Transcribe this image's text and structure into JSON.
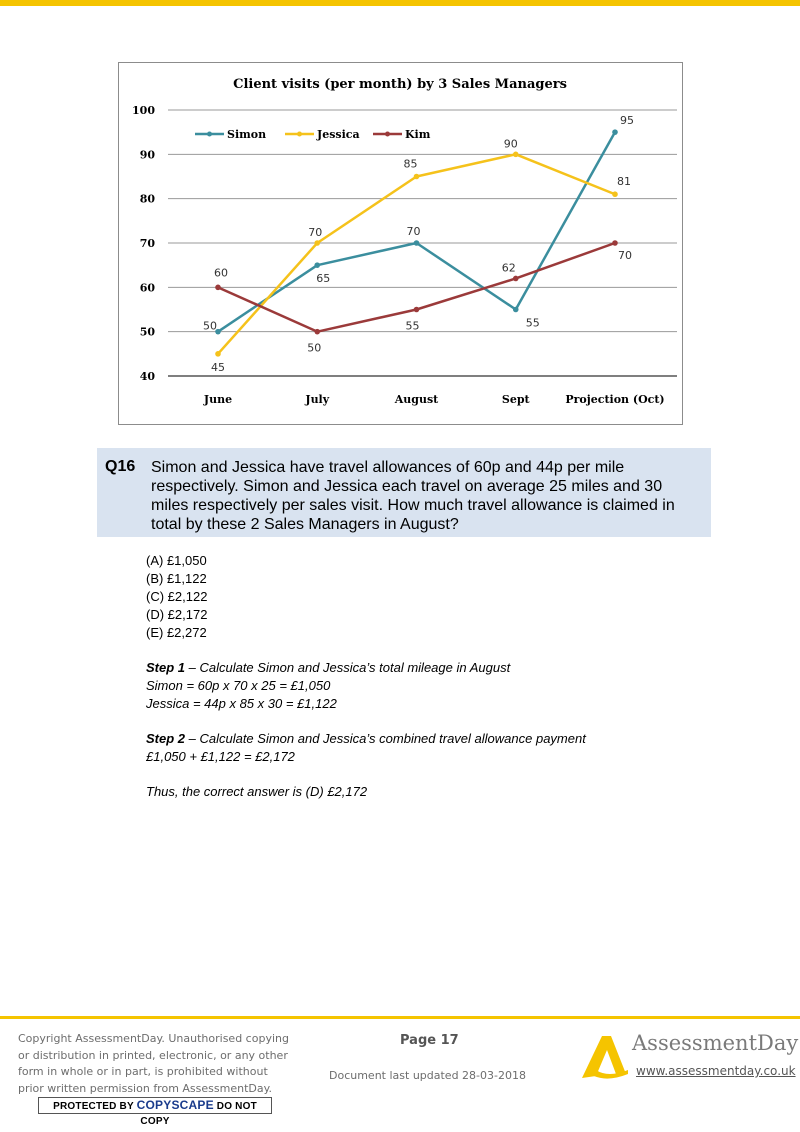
{
  "chart_data": {
    "type": "line",
    "title": "Client visits (per month) by 3 Sales Managers",
    "categories": [
      "June",
      "July",
      "August",
      "Sept",
      "Projection (Oct)"
    ],
    "ylim": [
      40,
      100
    ],
    "yticks": [
      "40",
      "50",
      "60",
      "70",
      "80",
      "90",
      "100"
    ],
    "grid": true,
    "legend_placement": "top-left",
    "series": [
      {
        "name": "Simon",
        "color": "#3b8e9e",
        "values": [
          50,
          65,
          70,
          55,
          95
        ]
      },
      {
        "name": "Jessica",
        "color": "#f5c21b",
        "values": [
          45,
          70,
          85,
          90,
          81
        ]
      },
      {
        "name": "Kim",
        "color": "#9b3a3a",
        "values": [
          60,
          50,
          55,
          62,
          70
        ]
      }
    ]
  },
  "question": {
    "number": "Q16",
    "lines": [
      "Simon and Jessica have travel allowances of 60p and 44p per mile",
      "respectively. Simon and Jessica each travel on average 25 miles and 30",
      "miles respectively per sales visit. How much travel allowance is claimed in",
      "total by these 2 Sales Managers in August?"
    ]
  },
  "options": [
    "(A) £1,050",
    "(B) £1,122",
    "(C) £2,122",
    "(D) £2,172",
    "(E) £2,272"
  ],
  "solution": {
    "step1_label": "Step 1",
    "step1_text": " – Calculate Simon and Jessica’s total mileage in August",
    "step1_line1": "Simon = 60p x 70 x 25 = £1,050",
    "step1_line2": "Jessica = 44p x 85 x 30 = £1,122",
    "step2_label": "Step 2",
    "step2_text": " – Calculate Simon and Jessica’s combined travel allowance payment",
    "step2_line1": "£1,050 + £1,122 = £2,172",
    "conclusion": "Thus, the correct answer is (D) £2,172"
  },
  "footer": {
    "copyright_lines": [
      "Copyright AssessmentDay. Unauthorised copying",
      "or distribution in printed, electronic, or any other",
      "form in whole or in part, is prohibited without",
      "prior written permission from AssessmentDay."
    ],
    "copyscape_pre": "PROTECTED BY ",
    "copyscape_brand": "COPYSCAPE",
    "copyscape_post": " DO NOT COPY",
    "page_label": "Page 17",
    "updated": "Document last updated 28-03-2018",
    "brand": "AssessmentDay",
    "website": "www.assessmentday.co.uk"
  },
  "colors": {
    "accent": "#f5c400",
    "question_bg": "#d9e3f0"
  }
}
